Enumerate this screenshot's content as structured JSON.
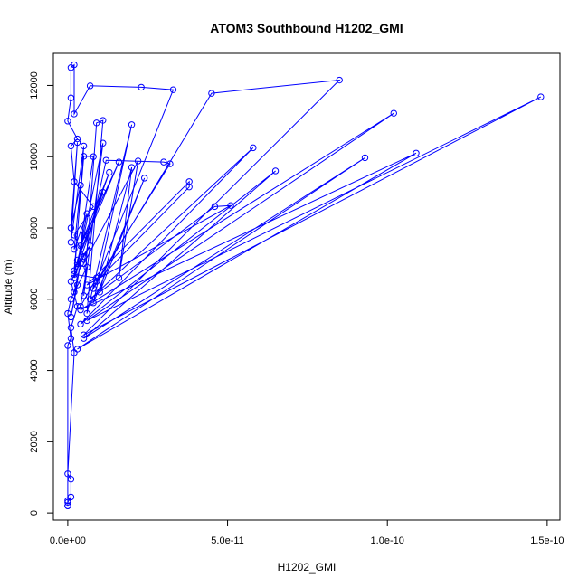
{
  "chart_data": {
    "type": "line",
    "title": "ATOM3 Southbound H1202_GMI",
    "xlabel": "H1202_GMI",
    "ylabel": "Altitude (m)",
    "xlim": [
      -4.5e-12,
      1.54e-10
    ],
    "ylim": [
      -200,
      12900
    ],
    "x_ticks": [
      0,
      5e-11,
      1e-10,
      1.5e-10
    ],
    "x_tick_labels": [
      "0.0e+00",
      "5.0e-11",
      "1.0e-10",
      "1.5e-10"
    ],
    "y_ticks": [
      0,
      2000,
      4000,
      6000,
      8000,
      10000,
      12000
    ],
    "y_tick_labels": [
      "0",
      "2000",
      "4000",
      "6000",
      "8000",
      "10000",
      "12000"
    ],
    "series_color": "#0000ff",
    "grid": false,
    "legend": "none",
    "series": [
      {
        "points": [
          [
            0.0,
            200
          ],
          [
            0.0,
            300
          ],
          [
            1e-12,
            450
          ],
          [
            1e-12,
            950
          ],
          [
            0.0,
            1100
          ],
          [
            2e-12,
            4500
          ],
          [
            1e-12,
            5200
          ],
          [
            3e-12,
            5800
          ],
          [
            1e-12,
            6500
          ],
          [
            5e-12,
            7200
          ],
          [
            2e-12,
            7800
          ],
          [
            8e-12,
            8600
          ],
          [
            2e-12,
            9300
          ],
          [
            1e-12,
            10300
          ],
          [
            3e-12,
            10500
          ],
          [
            0.0,
            11000
          ],
          [
            1e-12,
            11650
          ],
          [
            1e-12,
            12500
          ],
          [
            2e-12,
            12580
          ],
          [
            2e-12,
            11200
          ],
          [
            7e-12,
            11990
          ],
          [
            2.3e-11,
            11950
          ],
          [
            3.3e-11,
            11880
          ],
          [
            8e-12,
            6300
          ],
          [
            4.5e-11,
            11780
          ],
          [
            8.5e-11,
            12150
          ],
          [
            5e-12,
            5000
          ],
          [
            1.48e-10,
            11680
          ],
          [
            6e-12,
            5400
          ],
          [
            1.02e-10,
            11220
          ],
          [
            4e-12,
            5700
          ],
          [
            1.09e-10,
            10100
          ],
          [
            3e-12,
            4600
          ],
          [
            9.3e-11,
            9970
          ],
          [
            5e-12,
            4900
          ],
          [
            6.5e-11,
            9600
          ],
          [
            4e-12,
            5300
          ],
          [
            5.8e-11,
            10250
          ],
          [
            7e-12,
            6000
          ],
          [
            4.6e-11,
            8600
          ],
          [
            5.1e-11,
            8630
          ],
          [
            6e-12,
            6400
          ],
          [
            3.8e-11,
            9300
          ],
          [
            3.8e-11,
            9150
          ],
          [
            9e-12,
            6500
          ],
          [
            3.2e-11,
            9800
          ],
          [
            3e-11,
            9850
          ],
          [
            1.2e-11,
            9900
          ],
          [
            5e-12,
            7000
          ],
          [
            2.2e-11,
            9880
          ],
          [
            1.6e-11,
            6600
          ],
          [
            2e-11,
            9700
          ],
          [
            1e-11,
            6200
          ],
          [
            2.4e-11,
            9400
          ],
          [
            8e-12,
            5900
          ],
          [
            2e-11,
            10900
          ],
          [
            6e-12,
            5600
          ],
          [
            1.1e-11,
            11020
          ],
          [
            9e-12,
            10950
          ],
          [
            5e-12,
            6100
          ],
          [
            1.1e-11,
            10380
          ],
          [
            3e-12,
            6900
          ],
          [
            8e-12,
            10000
          ],
          [
            5e-12,
            10010
          ],
          [
            2e-12,
            6800
          ],
          [
            1.3e-11,
            9560
          ],
          [
            4e-12,
            7500
          ],
          [
            1.6e-11,
            9850
          ],
          [
            3e-12,
            7100
          ],
          [
            1.1e-11,
            9000
          ],
          [
            2e-12,
            6600
          ],
          [
            5e-12,
            10300
          ],
          [
            1e-12,
            7600
          ],
          [
            3e-12,
            10400
          ],
          [
            1e-12,
            8000
          ],
          [
            4e-12,
            9200
          ],
          [
            2e-12,
            7400
          ],
          [
            6e-12,
            8400
          ],
          [
            3e-12,
            7000
          ],
          [
            7e-12,
            7500
          ],
          [
            3e-12,
            6900
          ],
          [
            5e-12,
            7800
          ],
          [
            2e-12,
            6700
          ],
          [
            9e-12,
            6600
          ],
          [
            4e-12,
            5800
          ],
          [
            6e-12,
            6900
          ],
          [
            2e-12,
            6200
          ],
          [
            4e-12,
            7000
          ],
          [
            1e-12,
            5500
          ],
          [
            3e-12,
            6400
          ],
          [
            1e-12,
            6000
          ],
          [
            0.0,
            5600
          ],
          [
            1e-12,
            4900
          ],
          [
            0.0,
            4700
          ],
          [
            0.0,
            350
          ],
          [
            0.0,
            200
          ]
        ]
      }
    ]
  }
}
